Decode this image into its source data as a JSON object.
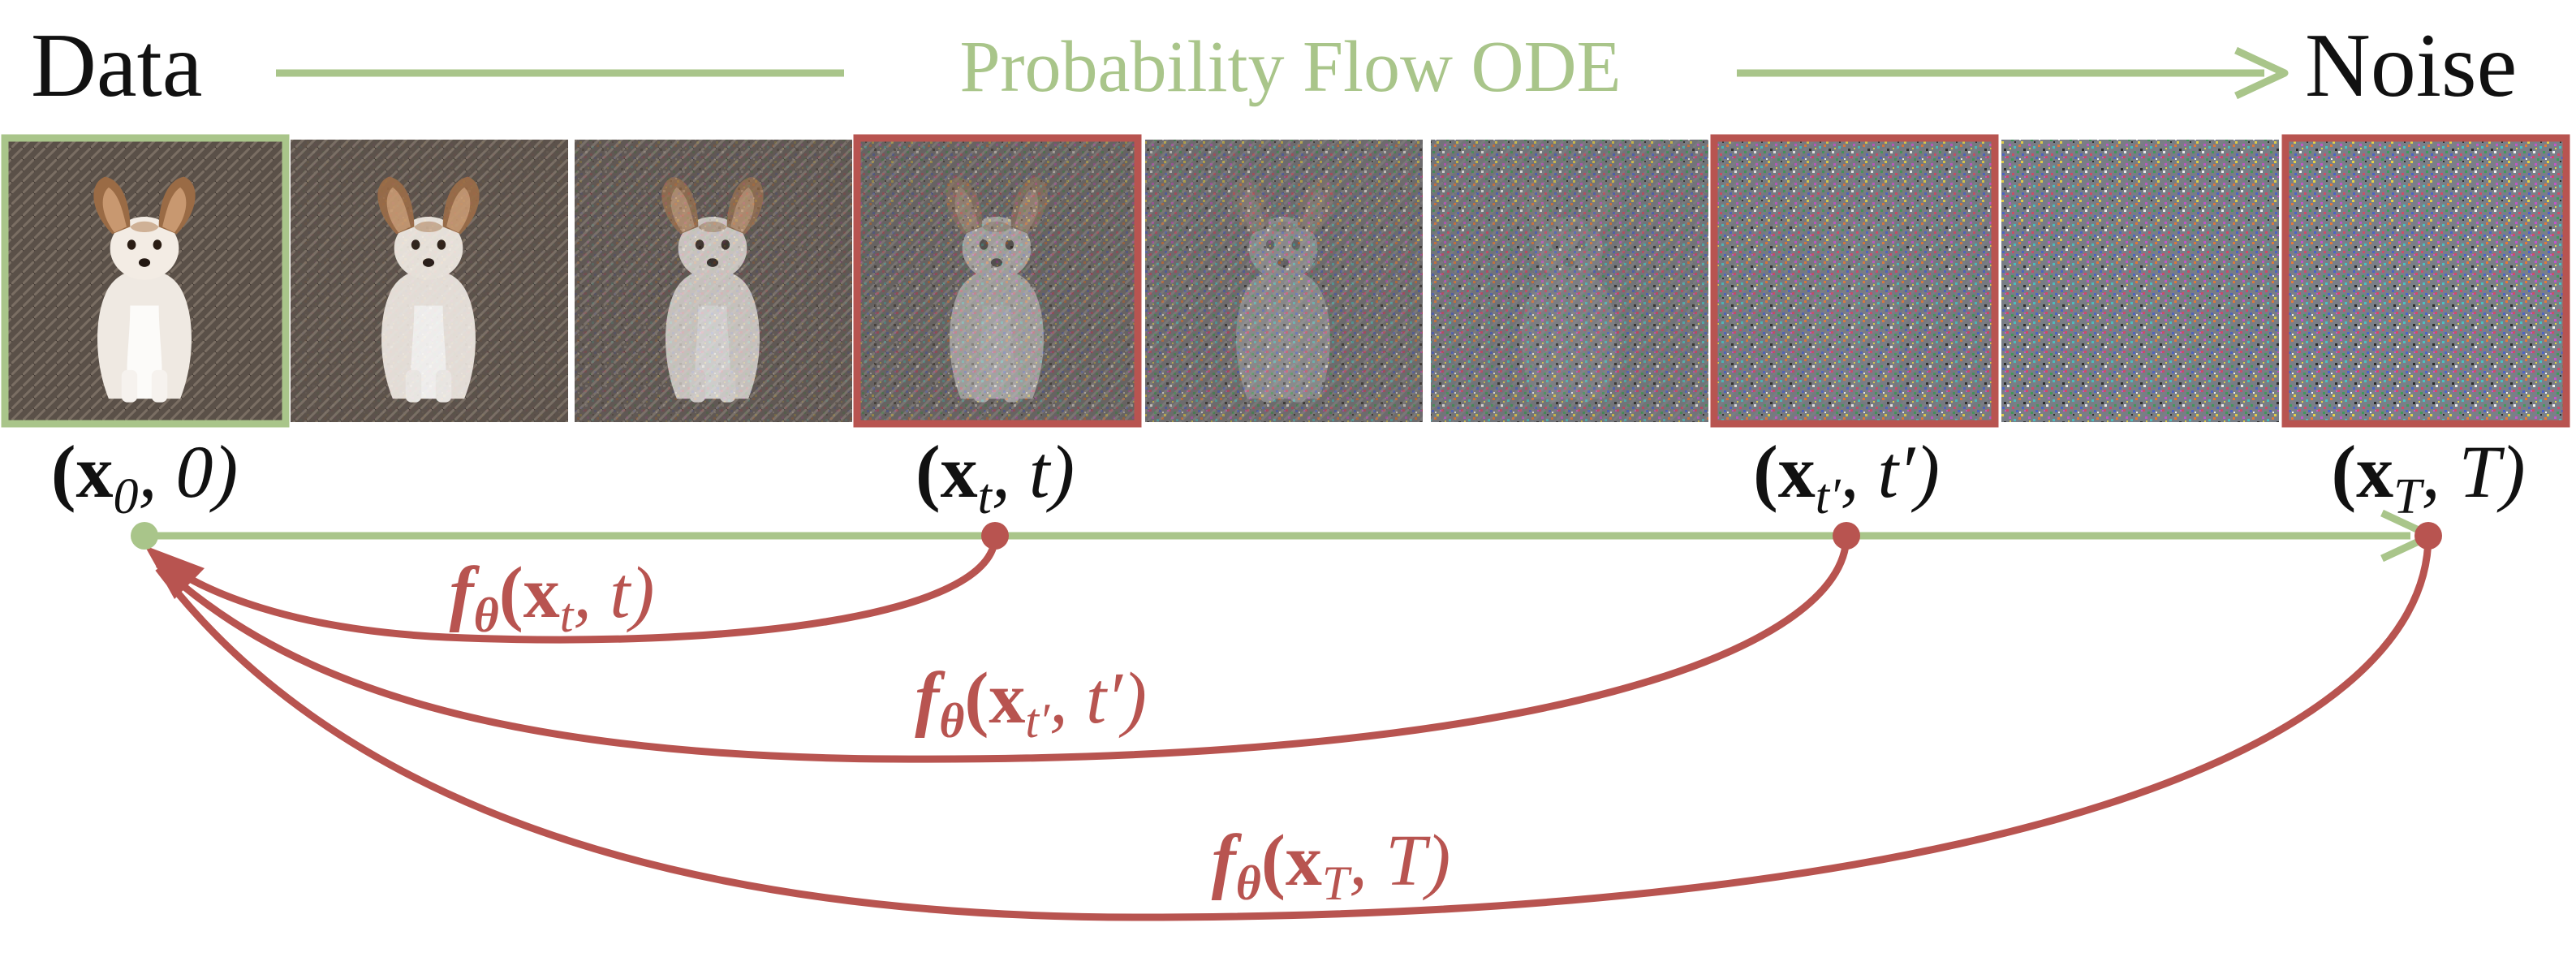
{
  "header": {
    "left_label": "Data",
    "center_label": "Probability Flow ODE",
    "right_label": "Noise"
  },
  "strip": {
    "frames": [
      {
        "noise": 0.0,
        "highlight": "data"
      },
      {
        "noise": 0.05,
        "highlight": "none"
      },
      {
        "noise": 0.18,
        "highlight": "none"
      },
      {
        "noise": 0.4,
        "highlight": "point"
      },
      {
        "noise": 0.58,
        "highlight": "none"
      },
      {
        "noise": 0.76,
        "highlight": "none"
      },
      {
        "noise": 0.88,
        "highlight": "point"
      },
      {
        "noise": 0.95,
        "highlight": "none"
      },
      {
        "noise": 1.0,
        "highlight": "point"
      }
    ]
  },
  "points": [
    {
      "label_main": "(x",
      "label_sub": "0",
      "label_tail": ", 0)"
    },
    {
      "label_main": "(x",
      "label_sub": "t",
      "label_tail": ", t)"
    },
    {
      "label_main": "(x",
      "label_sub": "t′",
      "label_tail": ", t′)"
    },
    {
      "label_main": "(x",
      "label_sub": "T",
      "label_tail": ", T)"
    }
  ],
  "mappings": [
    {
      "fn": "f",
      "param": "θ",
      "arg_main": "(x",
      "arg_sub": "t",
      "arg_tail": ", t)"
    },
    {
      "fn": "f",
      "param": "θ",
      "arg_main": "(x",
      "arg_sub": "t′",
      "arg_tail": ", t′)"
    },
    {
      "fn": "f",
      "param": "θ",
      "arg_main": "(x",
      "arg_sub": "T",
      "arg_tail": ", T)"
    }
  ],
  "colors": {
    "flow_green": "#a9c58a",
    "red": "#b85450",
    "black": "#111111"
  }
}
